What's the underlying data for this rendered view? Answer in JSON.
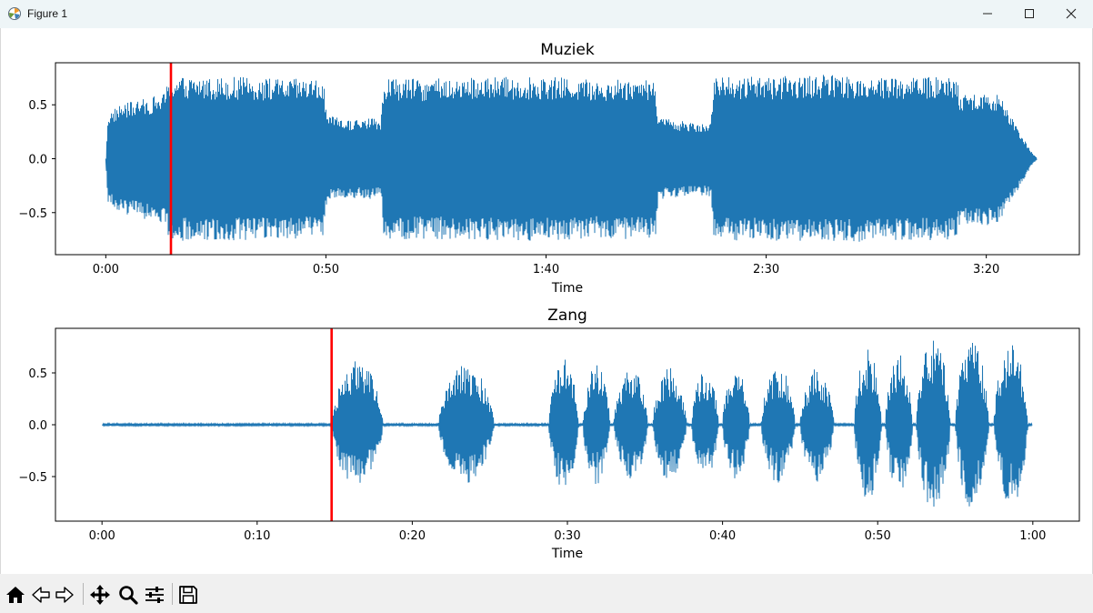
{
  "window": {
    "title": "Figure 1",
    "icons": {
      "app": "matplotlib-icon",
      "minimize": "minimize-icon",
      "maximize": "maximize-icon",
      "close": "close-icon"
    }
  },
  "toolbar": {
    "buttons": [
      {
        "name": "home",
        "icon": "home-icon"
      },
      {
        "name": "back",
        "icon": "back-arrow-icon"
      },
      {
        "name": "forward",
        "icon": "forward-arrow-icon"
      },
      {
        "name": "pan",
        "icon": "pan-move-icon"
      },
      {
        "name": "zoom",
        "icon": "zoom-icon"
      },
      {
        "name": "configure-subplots",
        "icon": "sliders-icon"
      },
      {
        "name": "save",
        "icon": "save-icon"
      }
    ]
  },
  "colors": {
    "waveform": "#1f77b4",
    "playhead": "#ff0000"
  },
  "chart_data": [
    {
      "type": "line",
      "title": "Muziek",
      "xlabel": "Time",
      "ylabel": "",
      "xlim_seconds": [
        -11.43,
        221.14
      ],
      "ylim": [
        -0.89,
        0.89
      ],
      "x_ticks": [
        {
          "value": 0,
          "label": "0:00"
        },
        {
          "value": 50,
          "label": "0:50"
        },
        {
          "value": 100,
          "label": "1:40"
        },
        {
          "value": 150,
          "label": "2:30"
        },
        {
          "value": 200,
          "label": "3:20"
        }
      ],
      "y_ticks": [
        {
          "value": 0.5,
          "label": "0.5"
        },
        {
          "value": 0.0,
          "label": "0.0"
        },
        {
          "value": -0.5,
          "label": "−0.5"
        }
      ],
      "envelope": {
        "time_s": [
          0,
          0.5,
          3,
          8,
          13,
          15,
          15.5,
          20,
          30,
          40,
          49.4,
          50.2,
          55,
          60,
          62.5,
          63.2,
          70,
          80,
          90,
          100,
          110,
          124.8,
          125.5,
          130,
          135,
          137.5,
          138.2,
          150,
          165,
          180,
          193.2,
          194,
          200,
          203,
          207,
          210.5,
          211.5
        ],
        "amplitude": [
          0.01,
          0.42,
          0.5,
          0.55,
          0.6,
          0.78,
          0.76,
          0.76,
          0.76,
          0.74,
          0.74,
          0.4,
          0.36,
          0.38,
          0.36,
          0.76,
          0.74,
          0.75,
          0.76,
          0.76,
          0.74,
          0.75,
          0.38,
          0.36,
          0.34,
          0.36,
          0.76,
          0.76,
          0.78,
          0.76,
          0.76,
          0.6,
          0.62,
          0.6,
          0.3,
          0.05,
          0.01
        ]
      },
      "playhead_s": 14.8
    },
    {
      "type": "line",
      "title": "Zang",
      "xlabel": "Time",
      "ylabel": "",
      "xlim_seconds": [
        -3.0,
        63.0
      ],
      "ylim": [
        -0.93,
        0.93
      ],
      "x_ticks": [
        {
          "value": 0,
          "label": "0:00"
        },
        {
          "value": 10,
          "label": "0:10"
        },
        {
          "value": 20,
          "label": "0:20"
        },
        {
          "value": 30,
          "label": "0:30"
        },
        {
          "value": 40,
          "label": "0:40"
        },
        {
          "value": 50,
          "label": "0:50"
        },
        {
          "value": 60,
          "label": "1:00"
        }
      ],
      "y_ticks": [
        {
          "value": 0.5,
          "label": "0.5"
        },
        {
          "value": 0.0,
          "label": "0.0"
        },
        {
          "value": -0.5,
          "label": "−0.5"
        }
      ],
      "bursts": [
        {
          "start_s": 14.8,
          "end_s": 18.6,
          "amplitude": 0.62
        },
        {
          "start_s": 21.7,
          "end_s": 25.8,
          "amplitude": 0.58
        },
        {
          "start_s": 28.8,
          "end_s": 31.0,
          "amplitude": 0.64
        },
        {
          "start_s": 31.0,
          "end_s": 33.0,
          "amplitude": 0.58
        },
        {
          "start_s": 33.0,
          "end_s": 35.5,
          "amplitude": 0.55
        },
        {
          "start_s": 35.5,
          "end_s": 38.0,
          "amplitude": 0.56
        },
        {
          "start_s": 38.0,
          "end_s": 40.0,
          "amplitude": 0.52
        },
        {
          "start_s": 40.0,
          "end_s": 42.0,
          "amplitude": 0.53
        },
        {
          "start_s": 42.5,
          "end_s": 45.0,
          "amplitude": 0.57
        },
        {
          "start_s": 45.0,
          "end_s": 47.5,
          "amplitude": 0.55
        },
        {
          "start_s": 48.5,
          "end_s": 50.5,
          "amplitude": 0.74
        },
        {
          "start_s": 50.5,
          "end_s": 52.5,
          "amplitude": 0.7
        },
        {
          "start_s": 52.5,
          "end_s": 55.0,
          "amplitude": 0.85
        },
        {
          "start_s": 55.0,
          "end_s": 57.5,
          "amplitude": 0.82
        },
        {
          "start_s": 57.5,
          "end_s": 60.0,
          "amplitude": 0.8
        }
      ],
      "noise_floor": 0.01,
      "signal_end_s": 60.0,
      "playhead_s": 14.8
    }
  ]
}
